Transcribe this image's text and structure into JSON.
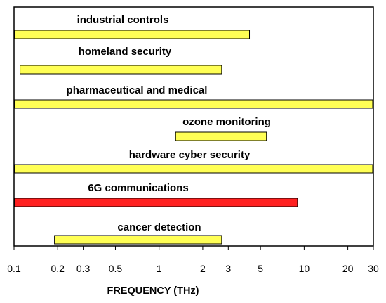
{
  "chart_data": {
    "type": "bar",
    "orientation": "horizontal",
    "x_scale": "log",
    "xlim": [
      0.1,
      30
    ],
    "xlabel": "FREQUENCY (THz)",
    "xticks": [
      0.1,
      0.2,
      0.3,
      0.5,
      1,
      2,
      3,
      5,
      10,
      20,
      30
    ],
    "xtick_labels": [
      "0.1",
      "0.2",
      "0.3",
      "0.5",
      "1",
      "2",
      "3",
      "5",
      "10",
      "20",
      "30"
    ],
    "grid": false,
    "bars": [
      {
        "label": "industrial controls",
        "start": 0.1,
        "end": 4.2,
        "color": "#ffff55"
      },
      {
        "label": "homeland security",
        "start": 0.11,
        "end": 2.7,
        "color": "#ffff55"
      },
      {
        "label": "pharmaceutical and medical",
        "start": 0.1,
        "end": 30,
        "color": "#ffff55"
      },
      {
        "label": "ozone monitoring",
        "start": 1.3,
        "end": 5.5,
        "color": "#ffff55"
      },
      {
        "label": "hardware cyber security",
        "start": 0.1,
        "end": 30,
        "color": "#ffff55"
      },
      {
        "label": "6G communications",
        "start": 0.1,
        "end": 9,
        "color": "#ff2020"
      },
      {
        "label": "cancer detection",
        "start": 0.19,
        "end": 2.7,
        "color": "#ffff55"
      }
    ]
  }
}
